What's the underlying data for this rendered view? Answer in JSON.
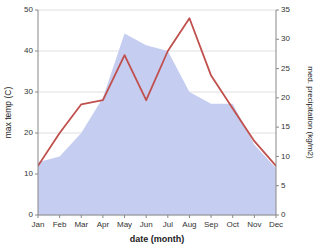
{
  "chart_data": {
    "type": "line",
    "xlabel": "date (month)",
    "ylabel": "max temp (C)",
    "y2label": "med. precipitation (kg/m2)",
    "categories": [
      "Jan",
      "Feb",
      "Mar",
      "Apr",
      "May",
      "Jun",
      "Jul",
      "Aug",
      "Sep",
      "Oct",
      "Nov",
      "Dec"
    ],
    "series": [
      {
        "type": "area",
        "axis": "y2",
        "color": "#c5cdf0",
        "values": [
          9,
          10,
          14,
          20,
          31,
          29,
          28,
          21,
          19,
          19,
          12,
          8
        ]
      },
      {
        "type": "line",
        "color": "#c0504d",
        "values": [
          12,
          20,
          27,
          28,
          39,
          28,
          40,
          48,
          34,
          26,
          18,
          12
        ]
      }
    ],
    "ylim": [
      0,
      50
    ],
    "yticks": [
      0,
      10,
      20,
      30,
      40,
      50
    ],
    "y2lim": [
      0,
      35
    ],
    "y2ticks": [
      0,
      5,
      10,
      15,
      20,
      25,
      30,
      35
    ],
    "grid": true
  }
}
